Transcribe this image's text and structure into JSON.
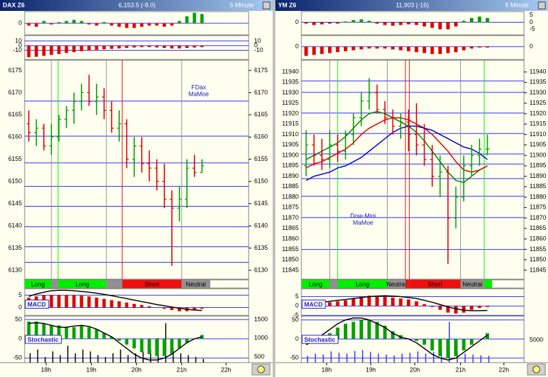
{
  "chart_data": [
    {
      "type": "candlestick",
      "title": "DAX Z6",
      "quote": "6,153.5 (-8.0)",
      "timeframe": "5 Minute",
      "annotation": [
        "FDax",
        "MaMoe"
      ],
      "xlim": [
        -0.55,
        29.2
      ],
      "xticks": [
        {
          "value": 2.3,
          "label": "18h"
        },
        {
          "value": 8.3,
          "label": "19h"
        },
        {
          "value": 14.3,
          "label": "20h"
        },
        {
          "value": 20.3,
          "label": "21h"
        },
        {
          "value": 26.2,
          "label": "22h"
        }
      ],
      "ylim": [
        6128,
        6177.3
      ],
      "yticks": [
        6130,
        6135,
        6140,
        6145,
        6150,
        6155,
        6160,
        6165,
        6170,
        6175
      ],
      "open": [
        6163,
        6161,
        6162,
        6158,
        6160,
        6164,
        6166,
        6168,
        6170,
        6168,
        6169,
        6166,
        6162,
        6163,
        6155,
        6158,
        6154,
        6153,
        6150,
        6146,
        6144,
        6146,
        6153,
        6152
      ],
      "high": [
        6166,
        6164,
        6163,
        6163,
        6165,
        6167,
        6170,
        6172,
        6174,
        6172,
        6171,
        6168,
        6166,
        6164,
        6160,
        6160,
        6157,
        6155,
        6154,
        6148,
        6149,
        6155,
        6156,
        6155
      ],
      "low": [
        6159,
        6158,
        6157,
        6156,
        6159,
        6162,
        6163,
        6166,
        6167,
        6165,
        6164,
        6161,
        6159,
        6153,
        6151,
        6152,
        6150,
        6148,
        6144,
        6131,
        6141,
        6144,
        6151,
        6152
      ],
      "close": [
        6161,
        6162,
        6158,
        6160,
        6164,
        6166,
        6168,
        6170,
        6168,
        6169,
        6166,
        6162,
        6163,
        6155,
        6158,
        6154,
        6153,
        6150,
        6146,
        6144,
        6146,
        6153,
        6152,
        6153.5
      ],
      "up_color": "#00a000",
      "down_color": "#e00000",
      "levels": [
        6168.1,
        6160.2,
        6154.2,
        6148.9,
        6144.4,
        6139.8,
        6135.3,
        6131.8
      ],
      "level_color": "#2828ff",
      "regimes": [
        {
          "label": "Long",
          "color": "#00ee00",
          "start": -0.55,
          "end": 3.0
        },
        {
          "label": null,
          "color": "#909090",
          "start": 3.0,
          "end": 3.9
        },
        {
          "label": "Long",
          "color": "#00ee00",
          "start": 3.9,
          "end": 10.3
        },
        {
          "label": null,
          "color": "#909090",
          "start": 10.3,
          "end": 12.4
        },
        {
          "label": "Short",
          "color": "#ee1010",
          "start": 12.4,
          "end": 20.3
        },
        {
          "label": "Neutral",
          "color": "#909090",
          "start": 20.3,
          "end": 24.1
        }
      ],
      "panels": [
        {
          "ylim": [
            -5,
            5
          ],
          "yticks": [
            0
          ],
          "colors": [
            "#00a000",
            "#e00000"
          ],
          "values": [
            -1,
            -1.5,
            1,
            -0.5,
            0.5,
            1,
            1.5,
            1,
            -0.5,
            -1,
            0.5,
            -1,
            -1.5,
            -2,
            -2,
            -1.5,
            -1,
            -1,
            -1.5,
            -1,
            1,
            3,
            4.5,
            4
          ]
        },
        {
          "ylim": [
            -30,
            21.7
          ],
          "yticks": [
            10,
            0,
            -10
          ],
          "right_ticks": [
            10,
            0,
            -10
          ],
          "colors": [
            "#00a000",
            "#e00000"
          ],
          "values": [
            -25,
            -24,
            -22,
            -20,
            -18,
            -16,
            -14,
            -12,
            -10,
            -9,
            -8,
            -7,
            -6,
            -5,
            -4,
            -3,
            -3,
            -4,
            -5,
            -6,
            -6,
            -5,
            -4,
            -3
          ]
        },
        {
          "label": "MACD",
          "ylim": [
            -3.2,
            7.6
          ],
          "yticks": [
            5,
            0
          ],
          "colors": [
            "#e00000",
            "#e00000"
          ],
          "values": [
            4,
            4.5,
            5,
            5,
            5,
            5,
            5,
            4.8,
            4.5,
            4,
            3.5,
            3,
            2.5,
            2,
            1.5,
            1,
            0.5,
            0,
            -0.5,
            -1,
            -1.5,
            -1.5,
            -1,
            -0.5
          ],
          "line": {
            "color": "#000000",
            "values": [
              4.5,
              5.5,
              6.2,
              6.8,
              7,
              7,
              6.8,
              6.5,
              6.2,
              5.8,
              5.3,
              4.8,
              4.2,
              3.6,
              3,
              2.4,
              1.8,
              1.2,
              0.7,
              0.2,
              -0.3,
              -0.7,
              -1,
              -1.2
            ]
          }
        },
        {
          "label": "Stochastic",
          "ylim": [
            -62,
            59
          ],
          "yticks": [
            50,
            0,
            -50
          ],
          "colors": [
            "#00a000",
            "#00a000"
          ],
          "values": [
            45,
            45,
            40,
            35,
            35,
            30,
            30,
            35,
            30,
            25,
            15,
            5,
            -5,
            -15,
            -25,
            -35,
            -40,
            -45,
            -45,
            -40,
            -25,
            -10,
            0,
            10
          ],
          "line": {
            "color": "#000000",
            "values": [
              40,
              42,
              40,
              35,
              30,
              30,
              33,
              35,
              32,
              25,
              15,
              5,
              -10,
              -25,
              -40,
              -50,
              -55,
              -55,
              -50,
              -40,
              -25,
              -10,
              0,
              5
            ]
          },
          "volume": {
            "color": "#000000",
            "y2lim": [
              350,
              1590
            ],
            "y2ticks": [
              1500,
              1000,
              500
            ],
            "values": [
              600,
              700,
              500,
              650,
              550,
              800,
              600,
              700,
              650,
              550,
              500,
              600,
              700,
              550,
              600,
              650,
              700,
              1000,
              1400,
              700,
              600,
              550,
              500,
              450
            ]
          }
        }
      ]
    },
    {
      "type": "candlestick",
      "title": "YM Z6",
      "quote": "11,903 (-16)",
      "timeframe": "5 Minute",
      "annotation": [
        "Dow-Mini",
        "MaMoe"
      ],
      "xlim": [
        -0.6,
        27.65
      ],
      "xticks": [
        {
          "value": 2.6,
          "label": "18h"
        },
        {
          "value": 8.2,
          "label": "19h"
        },
        {
          "value": 13.8,
          "label": "20h"
        },
        {
          "value": 19.6,
          "label": "21h"
        },
        {
          "value": 25.1,
          "label": "22h"
        }
      ],
      "ylim": [
        11840.7,
        11945.6
      ],
      "yticks": [
        11845,
        11850,
        11855,
        11860,
        11865,
        11870,
        11875,
        11880,
        11885,
        11890,
        11895,
        11900,
        11905,
        11910,
        11915,
        11920,
        11925,
        11930,
        11935,
        11940
      ],
      "open": [
        11895,
        11905,
        11900,
        11898,
        11905,
        11902,
        11910,
        11918,
        11926,
        11930,
        11922,
        11918,
        11914,
        11916,
        11910,
        11905,
        11898,
        11890,
        11892,
        11870,
        11880,
        11895,
        11900,
        11903
      ],
      "high": [
        11912,
        11910,
        11908,
        11912,
        11910,
        11912,
        11920,
        11930,
        11937,
        11934,
        11926,
        11922,
        11920,
        11922,
        11925,
        11915,
        11905,
        11900,
        11895,
        11885,
        11900,
        11905,
        11908,
        11910
      ],
      "low": [
        11890,
        11895,
        11893,
        11894,
        11897,
        11898,
        11905,
        11914,
        11922,
        11920,
        11915,
        11910,
        11908,
        11902,
        11900,
        11895,
        11885,
        11880,
        11848,
        11865,
        11878,
        11890,
        11895,
        11900
      ],
      "close": [
        11905,
        11900,
        11898,
        11905,
        11902,
        11910,
        11918,
        11926,
        11930,
        11922,
        11918,
        11914,
        11916,
        11910,
        11905,
        11898,
        11890,
        11892,
        11870,
        11880,
        11895,
        11900,
        11903,
        11903
      ],
      "up_color": "#00a000",
      "down_color": "#e00000",
      "levels": [
        11935.7,
        11930.2,
        11920.3,
        11910.5,
        11900.7,
        11895.8,
        11888.9,
        11880.4,
        11870.2,
        11854.9
      ],
      "level_color": "#2828ff",
      "moving_averages": [
        {
          "color": "#008000",
          "values": [
            11898,
            11900,
            11902,
            11904,
            11906,
            11909,
            11913,
            11917,
            11920,
            11921,
            11920,
            11918,
            11916,
            11914,
            11911,
            11907,
            11902,
            11897,
            11892,
            11888,
            11887,
            11890,
            11893,
            11895
          ]
        },
        {
          "color": "#e00000",
          "values": [
            11894,
            11896,
            11897,
            11899,
            11901,
            11903,
            11906,
            11910,
            11913,
            11915,
            11917,
            11918,
            11918,
            11917,
            11915,
            11913,
            11910,
            11906,
            11902,
            11897,
            11893,
            11892,
            11893,
            11895
          ]
        },
        {
          "color": "#0000e0",
          "values": [
            11888,
            11890,
            11891,
            11892,
            11894,
            11895,
            11897,
            11899,
            11902,
            11905,
            11908,
            11911,
            11913,
            11914,
            11914,
            11913,
            11912,
            11910,
            11908,
            11906,
            11904,
            11903,
            11901,
            11898
          ]
        }
      ],
      "regimes": [
        {
          "label": "Long",
          "color": "#00ee00",
          "start": -0.6,
          "end": 3.0
        },
        {
          "label": null,
          "color": "#909090",
          "start": 3.0,
          "end": 4.0
        },
        {
          "label": "Long",
          "color": "#00ee00",
          "start": 4.0,
          "end": 10.3
        },
        {
          "label": "Neutral",
          "color": "#909090",
          "start": 10.3,
          "end": 12.6
        },
        {
          "label": null,
          "color": "#ee1010",
          "start": 12.6,
          "end": 13.1
        },
        {
          "label": "Short",
          "color": "#ee1010",
          "start": 13.1,
          "end": 19.6
        },
        {
          "label": "Neutral",
          "color": "#909090",
          "start": 19.6,
          "end": 22.6
        },
        {
          "label": null,
          "color": "#00ee00",
          "start": 22.6,
          "end": 23.6
        }
      ],
      "panels": [
        {
          "ylim": [
            -9,
            7.5
          ],
          "yticks": [
            0
          ],
          "right_ticks": [
            5,
            0,
            -5
          ],
          "colors": [
            "#00a000",
            "#e00000"
          ],
          "values": [
            -1,
            -2,
            -1.5,
            -1,
            -1,
            0.5,
            1.5,
            2,
            1,
            -1,
            -2,
            -2.5,
            -2,
            -1.5,
            -2,
            -3,
            -4,
            -5,
            -5,
            -3,
            1,
            3,
            4,
            3
          ]
        },
        {
          "ylim": [
            -14,
            12
          ],
          "yticks": [
            0
          ],
          "right_ticks": [
            0
          ],
          "colors": [
            "#00a000",
            "#e00000"
          ],
          "values": [
            -10,
            -9,
            -8,
            -7,
            -6,
            -5,
            -4,
            -3,
            -2,
            -2,
            -2,
            -3,
            -4,
            -5,
            -6,
            -7,
            -8,
            -8,
            -7,
            -6,
            -4,
            -2,
            -1,
            -1
          ]
        },
        {
          "label": "MACD",
          "ylim": [
            -5,
            9.2
          ],
          "yticks": [
            5,
            0,
            -5
          ],
          "colors": [
            "#e00000",
            "#e00000"
          ],
          "values": [
            1,
            1.5,
            2,
            2,
            2.5,
            3,
            4,
            5,
            5.5,
            5.5,
            5,
            4.5,
            4,
            3.5,
            2.5,
            1,
            -0.5,
            -2,
            -3.5,
            -4,
            -3.5,
            -2,
            -1,
            -0.5
          ],
          "line": {
            "color": "#000000",
            "values": [
              1,
              1.5,
              2,
              2.5,
              3,
              3.5,
              4,
              4.5,
              5,
              5.3,
              5.5,
              5.3,
              5,
              4.5,
              4,
              3,
              2,
              0.8,
              -0.5,
              -1.5,
              -2.2,
              -2.5,
              -2.5,
              -2.3
            ]
          }
        },
        {
          "label": "Stochastic",
          "ylim": [
            -62,
            60
          ],
          "yticks": [
            50,
            0,
            -50
          ],
          "colors": [
            "#00a000",
            "#00a000"
          ],
          "values": [
            -10,
            -5,
            5,
            15,
            30,
            40,
            45,
            50,
            50,
            45,
            35,
            20,
            10,
            0,
            -5,
            -15,
            -30,
            -45,
            -50,
            -45,
            -30,
            -15,
            0,
            15
          ],
          "line": {
            "color": "#000000",
            "values": [
              -15,
              -5,
              10,
              25,
              40,
              50,
              55,
              55,
              50,
              40,
              30,
              15,
              5,
              0,
              -10,
              -25,
              -40,
              -50,
              -55,
              -50,
              -35,
              -20,
              -5,
              10
            ]
          },
          "volume": {
            "color": "#3030ff",
            "y2lim": [
              0,
              10300
            ],
            "y2ticks": [
              5000
            ],
            "values": [
              1500,
              2000,
              1800,
              2500,
              2200,
              2000,
              2600,
              2800,
              2400,
              2000,
              1800,
              1600,
              2000,
              2200,
              2500,
              2000,
              2400,
              3000,
              9000,
              2600,
              2000,
              1800,
              1600,
              1500
            ]
          }
        }
      ]
    }
  ]
}
